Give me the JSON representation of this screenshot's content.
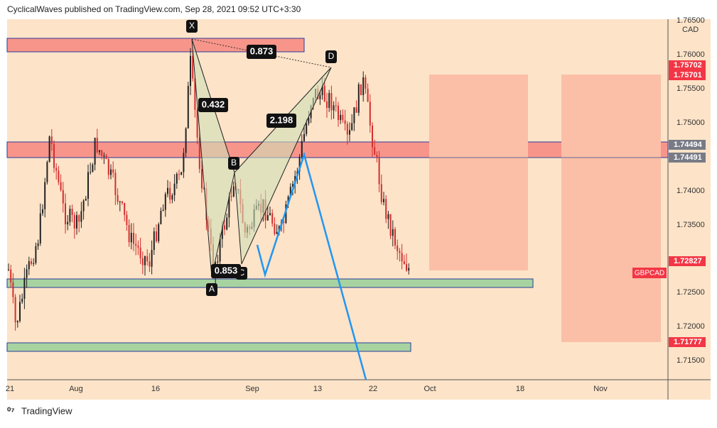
{
  "header": {
    "text": "CyclicalWaves published on TradingView.com, Sep 28, 2021 09:52 UTC+3:30"
  },
  "price_axis": {
    "currency": "CAD",
    "labels": [
      "1.76500",
      "1.76000",
      "1.75500",
      "1.75000",
      "1.74000",
      "1.73500",
      "1.72500",
      "1.72000",
      "1.71500"
    ]
  },
  "price_tags": [
    "1.75702",
    "1.75701",
    "1.74494",
    "1.74491",
    "1.72827",
    "1.71777"
  ],
  "symbol_tag": "GBPCAD",
  "time_axis": {
    "labels": [
      "21",
      "Aug",
      "16",
      "Sep",
      "13",
      "22",
      "Oct",
      "18",
      "Nov"
    ]
  },
  "pattern": {
    "points": [
      "X",
      "A",
      "B",
      "C",
      "D"
    ],
    "ratios": [
      "0.432",
      "0.873",
      "2.198",
      "0.853"
    ]
  },
  "footer": {
    "brand": "TradingView"
  }
}
